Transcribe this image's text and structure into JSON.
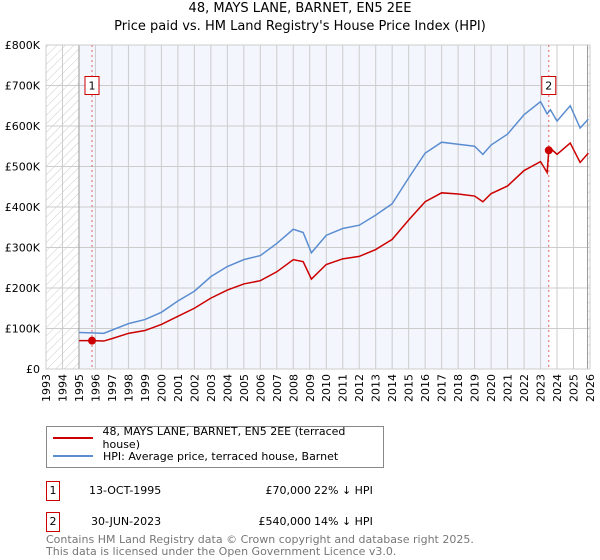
{
  "chart_data": {
    "type": "line",
    "title": "48, MAYS LANE, BARNET, EN5 2EE",
    "subtitle": "Price paid vs. HM Land Registry's House Price Index (HPI)",
    "xlim": [
      1993,
      2026
    ],
    "ylim": [
      0,
      800000
    ],
    "x_ticks": [
      "1993",
      "1994",
      "1995",
      "1996",
      "1997",
      "1998",
      "1999",
      "2000",
      "2001",
      "2002",
      "2003",
      "2004",
      "2005",
      "2006",
      "2007",
      "2008",
      "2009",
      "2010",
      "2011",
      "2012",
      "2013",
      "2014",
      "2015",
      "2016",
      "2017",
      "2018",
      "2019",
      "2020",
      "2021",
      "2022",
      "2023",
      "2024",
      "2025",
      "2026"
    ],
    "y_ticks": [
      {
        "v": 0,
        "label": "£0"
      },
      {
        "v": 100000,
        "label": "£100K"
      },
      {
        "v": 200000,
        "label": "£200K"
      },
      {
        "v": 300000,
        "label": "£300K"
      },
      {
        "v": 400000,
        "label": "£400K"
      },
      {
        "v": 500000,
        "label": "£500K"
      },
      {
        "v": 600000,
        "label": "£600K"
      },
      {
        "v": 700000,
        "label": "£700K"
      },
      {
        "v": 800000,
        "label": "£800K"
      }
    ],
    "grid": true,
    "series": [
      {
        "name": "48, MAYS LANE, BARNET, EN5 2EE (terraced house)",
        "color": "#cc0000",
        "x": [
          1995,
          1995.8,
          1996.5,
          1997,
          1998,
          1999,
          2000,
          2001,
          2002,
          2003,
          2004,
          2005,
          2006,
          2007,
          2008,
          2008.6,
          2009.1,
          2010,
          2011,
          2012,
          2013,
          2014,
          2015,
          2016,
          2017,
          2018,
          2019,
          2019.5,
          2020,
          2021,
          2022,
          2023,
          2023.4,
          2023.5,
          2023.6,
          2024,
          2024.8,
          2025.4,
          2025.9
        ],
        "y": [
          70000,
          70000,
          69000,
          75000,
          88000,
          95000,
          110000,
          130000,
          150000,
          175000,
          195000,
          210000,
          218000,
          240000,
          270000,
          265000,
          222000,
          258000,
          272000,
          278000,
          295000,
          320000,
          368000,
          413000,
          435000,
          432000,
          427000,
          413000,
          433000,
          452000,
          490000,
          512000,
          485000,
          540000,
          545000,
          530000,
          558000,
          510000,
          533000
        ]
      },
      {
        "name": "HPI: Average price, terraced house, Barnet",
        "color": "#5b8dd0",
        "x": [
          1995,
          1996,
          1996.5,
          1997,
          1998,
          1999,
          2000,
          2001,
          2002,
          2003,
          2004,
          2005,
          2006,
          2007,
          2008,
          2008.6,
          2009.1,
          2010,
          2011,
          2012,
          2013,
          2014,
          2015,
          2016,
          2017,
          2018,
          2019,
          2019.5,
          2020,
          2021,
          2022,
          2023,
          2023.4,
          2023.6,
          2024,
          2024.8,
          2025.4,
          2025.9
        ],
        "y": [
          90000,
          89000,
          88000,
          96000,
          112000,
          122000,
          140000,
          168000,
          192000,
          228000,
          253000,
          270000,
          280000,
          310000,
          345000,
          337000,
          287000,
          330000,
          347000,
          355000,
          380000,
          408000,
          472000,
          533000,
          560000,
          555000,
          550000,
          530000,
          553000,
          580000,
          628000,
          660000,
          630000,
          640000,
          612000,
          650000,
          595000,
          617000
        ]
      }
    ],
    "sales": [
      {
        "label": "1",
        "x": 1995.79,
        "y": 70000,
        "date": "13-OCT-1995",
        "price": "£70,000",
        "hpi": "22% ↓ HPI"
      },
      {
        "label": "2",
        "x": 2023.5,
        "y": 540000,
        "date": "30-JUN-2023",
        "price": "£540,000",
        "hpi": "14% ↓ HPI"
      }
    ],
    "legend_placement": "below",
    "footer1": "Contains HM Land Registry data © Crown copyright and database right 2025.",
    "footer2": "This data is licensed under the Open Government Licence v3.0."
  }
}
